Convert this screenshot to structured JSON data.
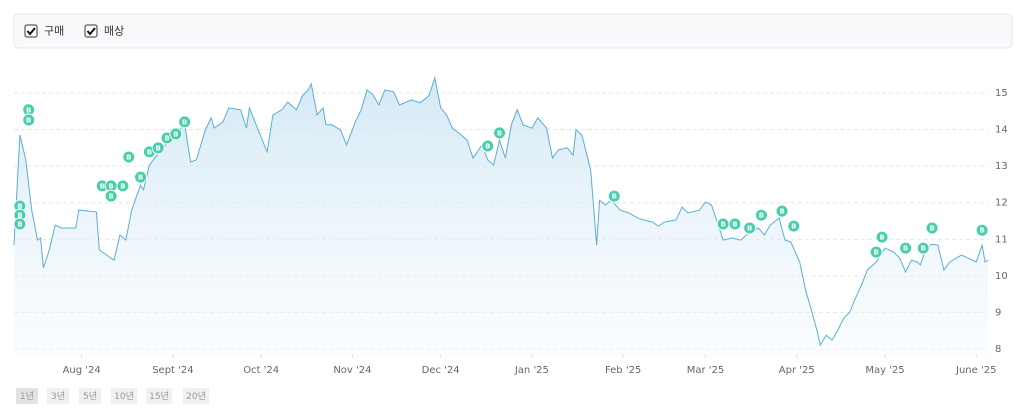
{
  "controls": {
    "checkboxes": [
      "구매",
      "매상"
    ],
    "ranges": [
      "1년",
      "3년",
      "5년",
      "10년",
      "15년",
      "20년"
    ]
  },
  "chart_data": {
    "type": "line",
    "color": "#5aaed8",
    "grid": true,
    "xlim": [
      0,
      331
    ],
    "ylim": [
      7.84,
      15.9
    ],
    "yticks": [
      8,
      9,
      10,
      11,
      12,
      13,
      14,
      15
    ],
    "xticks": [
      {
        "value": 23,
        "label": "Aug '24"
      },
      {
        "value": 54,
        "label": "Sept '24"
      },
      {
        "value": 84,
        "label": "Oct '24"
      },
      {
        "value": 115,
        "label": "Nov '24"
      },
      {
        "value": 145,
        "label": "Dec '24"
      },
      {
        "value": 176,
        "label": "Jan '25"
      },
      {
        "value": 207,
        "label": "Feb '25"
      },
      {
        "value": 235,
        "label": "Mar '25"
      },
      {
        "value": 266,
        "label": "Apr '25"
      },
      {
        "value": 296,
        "label": "May '25"
      },
      {
        "value": 327,
        "label": "June '25"
      }
    ],
    "x": [
      0,
      2,
      4,
      6,
      8,
      9,
      10,
      12,
      14,
      16,
      21,
      22,
      28,
      29,
      34,
      36,
      38,
      40,
      43,
      44,
      46,
      50,
      53,
      56,
      58,
      60,
      62,
      65,
      67,
      68,
      71,
      73,
      77,
      79,
      80,
      83,
      86,
      88,
      91,
      93,
      96,
      98,
      100,
      101,
      103,
      105,
      106,
      108,
      111,
      113,
      115,
      116,
      118,
      120,
      122,
      124,
      126,
      129,
      131,
      135,
      138,
      141,
      143,
      145,
      147,
      149,
      152,
      154,
      156,
      159,
      161,
      163,
      165,
      167,
      169,
      171,
      173,
      176,
      178,
      181,
      183,
      185,
      188,
      190,
      191,
      193,
      196,
      198,
      199,
      201,
      203,
      206,
      209,
      212,
      214,
      217,
      219,
      221,
      225,
      227,
      229,
      233,
      235,
      237,
      239,
      241,
      244,
      247,
      250,
      253,
      255,
      257,
      260,
      262,
      264,
      267,
      269,
      271,
      273,
      274,
      276,
      278,
      280,
      282,
      284,
      286,
      288,
      290,
      293,
      296,
      299,
      301,
      303,
      305,
      307,
      308,
      310,
      312,
      314,
      316,
      318,
      322,
      327,
      329,
      330,
      331
    ],
    "values": [
      10.84,
      13.85,
      13.17,
      11.8,
      10.98,
      11.04,
      10.22,
      10.71,
      11.39,
      11.31,
      11.31,
      11.8,
      11.75,
      10.71,
      10.43,
      11.12,
      10.98,
      11.8,
      12.48,
      12.35,
      13.03,
      13.44,
      13.71,
      13.99,
      14.13,
      13.11,
      13.17,
      13.99,
      14.32,
      14.04,
      14.21,
      14.59,
      14.54,
      14.04,
      14.59,
      13.99,
      13.39,
      14.4,
      14.54,
      14.75,
      14.54,
      14.92,
      15.08,
      15.25,
      14.4,
      14.59,
      14.13,
      14.13,
      13.99,
      13.58,
      13.99,
      14.21,
      14.54,
      15.08,
      14.95,
      14.67,
      15.08,
      15.03,
      14.67,
      14.81,
      14.73,
      14.92,
      15.41,
      14.59,
      14.4,
      14.04,
      13.85,
      13.71,
      13.22,
      13.58,
      13.17,
      13.03,
      13.71,
      13.22,
      14.13,
      14.54,
      14.13,
      14.04,
      14.32,
      14.04,
      13.22,
      13.44,
      13.5,
      13.3,
      13.99,
      13.85,
      12.89,
      10.84,
      12.07,
      11.94,
      12.07,
      11.8,
      11.72,
      11.58,
      11.53,
      11.47,
      11.36,
      11.47,
      11.53,
      11.88,
      11.72,
      11.8,
      12.02,
      11.94,
      11.47,
      10.98,
      11.04,
      10.98,
      11.2,
      11.31,
      11.12,
      11.39,
      11.58,
      10.98,
      10.93,
      10.38,
      9.61,
      9.07,
      8.47,
      8.11,
      8.38,
      8.25,
      8.52,
      8.85,
      9.01,
      9.4,
      9.75,
      10.16,
      10.38,
      10.76,
      10.65,
      10.49,
      10.11,
      10.43,
      10.38,
      10.3,
      10.76,
      10.87,
      10.84,
      10.16,
      10.38,
      10.57,
      10.38,
      10.84,
      10.38,
      10.43
    ],
    "markers": {
      "label": "B",
      "color": "#45cfaa",
      "x": [
        5,
        5,
        2,
        2,
        2,
        30,
        33,
        37,
        33,
        39,
        43,
        46,
        49,
        52,
        55,
        58,
        161,
        165,
        204,
        241,
        245,
        250,
        254,
        261,
        265,
        293,
        295,
        303,
        309,
        312,
        329
      ],
      "y": [
        14.54,
        14.26,
        11.91,
        11.66,
        11.42,
        12.46,
        12.46,
        12.46,
        12.18,
        13.25,
        12.7,
        13.39,
        13.5,
        13.77,
        13.88,
        14.21,
        13.55,
        13.91,
        12.18,
        11.42,
        11.42,
        11.31,
        11.66,
        11.77,
        11.36,
        10.65,
        11.06,
        10.76,
        10.76,
        11.31,
        11.25
      ]
    }
  }
}
